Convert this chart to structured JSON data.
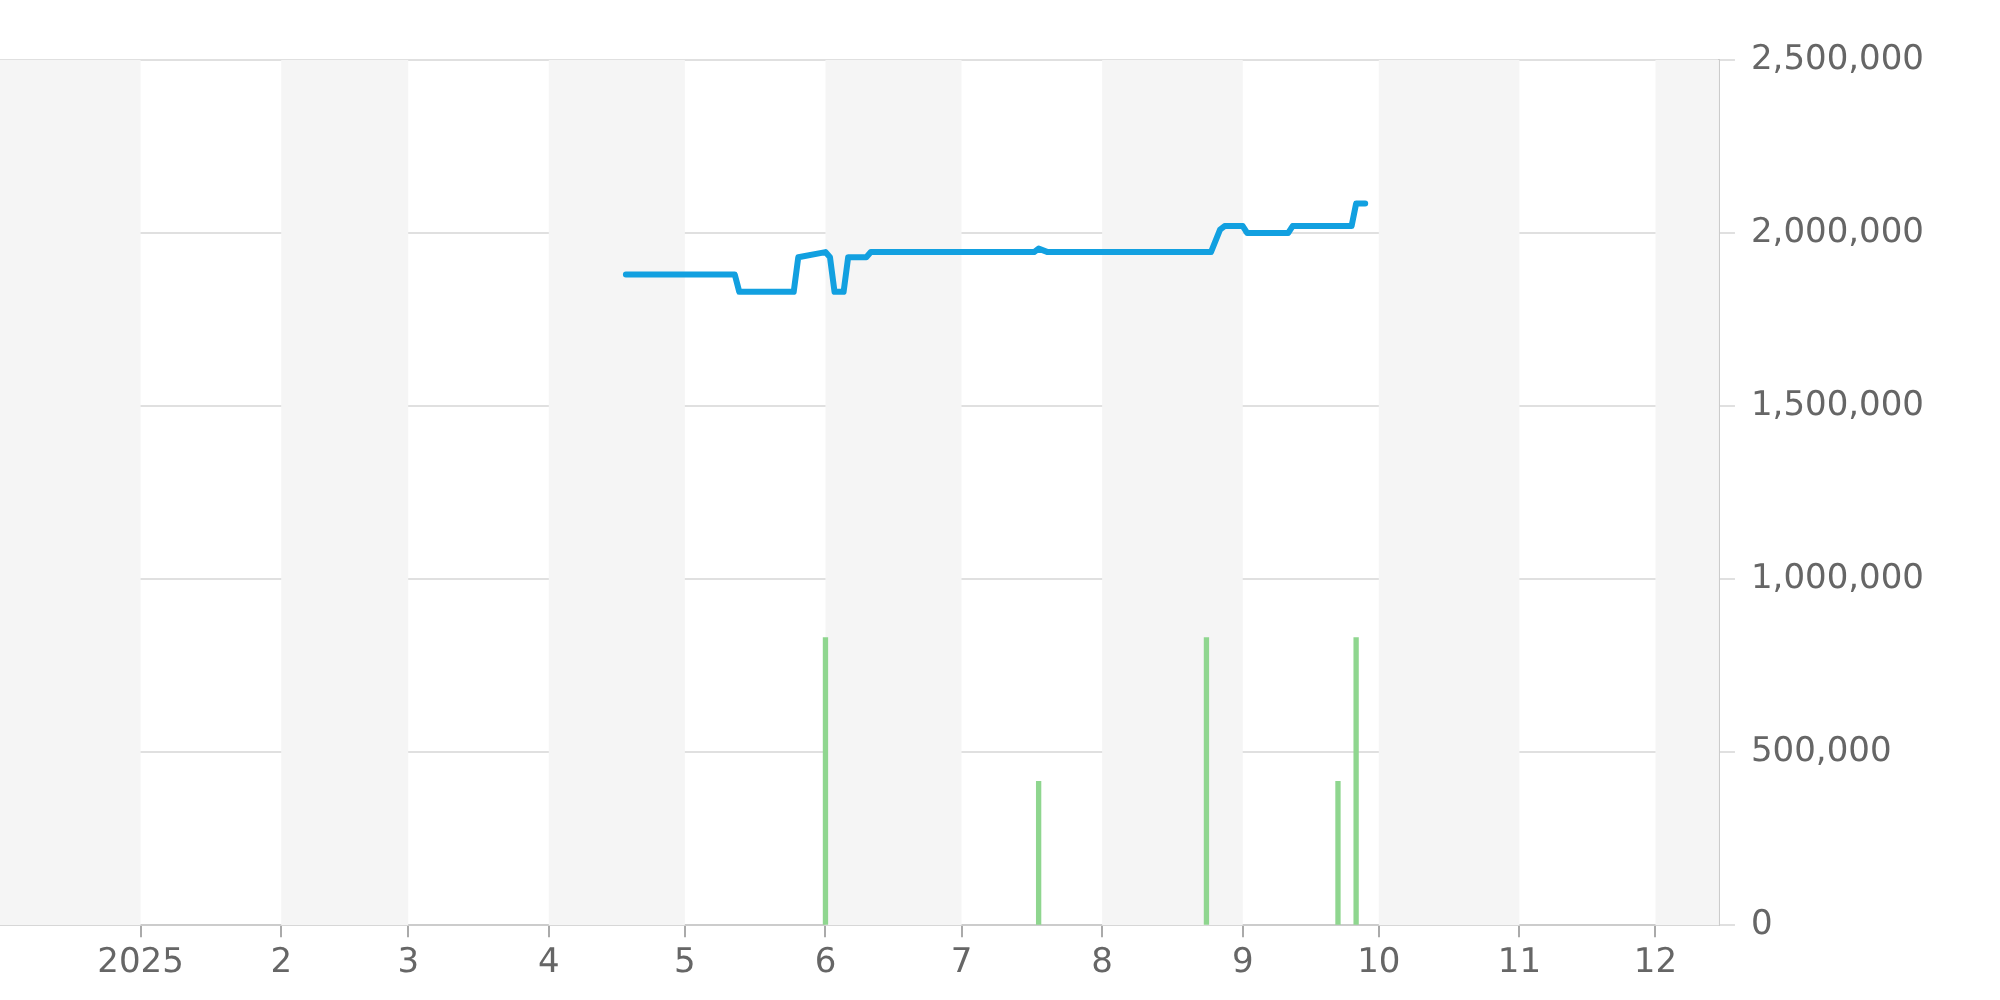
{
  "chart_data": {
    "type": "line",
    "xlim": [
      "2024-12-01",
      "2025-12-15"
    ],
    "xticks": [
      {
        "value": "2025-01-01",
        "label": "2025"
      },
      {
        "value": "2025-02-01",
        "label": "2"
      },
      {
        "value": "2025-03-01",
        "label": "3"
      },
      {
        "value": "2025-04-01",
        "label": "4"
      },
      {
        "value": "2025-05-01",
        "label": "5"
      },
      {
        "value": "2025-06-01",
        "label": "6"
      },
      {
        "value": "2025-07-01",
        "label": "7"
      },
      {
        "value": "2025-08-01",
        "label": "8"
      },
      {
        "value": "2025-09-01",
        "label": "9"
      },
      {
        "value": "2025-10-01",
        "label": "10"
      },
      {
        "value": "2025-11-01",
        "label": "11"
      },
      {
        "value": "2025-12-01",
        "label": "12"
      }
    ],
    "ylim": [
      0,
      2500000
    ],
    "yticks": [
      {
        "value": 0,
        "label": "0"
      },
      {
        "value": 500000,
        "label": "500,000"
      },
      {
        "value": 1000000,
        "label": "1,000,000"
      },
      {
        "value": 1500000,
        "label": "1,500,000"
      },
      {
        "value": 2000000,
        "label": "2,000,000"
      },
      {
        "value": 2500000,
        "label": "2,500,000"
      }
    ],
    "grid": "y",
    "legend": false,
    "marker": "none",
    "line_style": "solid",
    "bands": [
      {
        "axis": "x",
        "from": "2024-12-01",
        "to": "2025-01-01",
        "color": "#f5f5f5"
      },
      {
        "axis": "x",
        "from": "2025-02-01",
        "to": "2025-03-01",
        "color": "#f5f5f5"
      },
      {
        "axis": "x",
        "from": "2025-04-01",
        "to": "2025-05-01",
        "color": "#f5f5f5"
      },
      {
        "axis": "x",
        "from": "2025-06-01",
        "to": "2025-07-01",
        "color": "#f5f5f5"
      },
      {
        "axis": "x",
        "from": "2025-08-01",
        "to": "2025-09-01",
        "color": "#f5f5f5"
      },
      {
        "axis": "x",
        "from": "2025-10-01",
        "to": "2025-11-01",
        "color": "#f5f5f5"
      },
      {
        "axis": "x",
        "from": "2025-12-01",
        "to": "2025-12-15",
        "color": "#f5f5f5"
      }
    ],
    "series": [
      {
        "type": "bar",
        "color": "#8fd68f",
        "x": [
          "2025-06-01",
          "2025-07-18",
          "2025-08-24",
          "2025-09-22",
          "2025-09-26"
        ],
        "values": [
          830000,
          415000,
          830000,
          415000,
          830000
        ]
      },
      {
        "color": "#12a0e0",
        "x": [
          "2025-04-18",
          "2025-05-12",
          "2025-05-13",
          "2025-05-25",
          "2025-05-26",
          "2025-06-01",
          "2025-06-02",
          "2025-06-03",
          "2025-06-05",
          "2025-06-06",
          "2025-06-10",
          "2025-06-11",
          "2025-07-17",
          "2025-07-18",
          "2025-07-20",
          "2025-08-25",
          "2025-08-27",
          "2025-08-28",
          "2025-09-01",
          "2025-09-02",
          "2025-09-11",
          "2025-09-12",
          "2025-09-25",
          "2025-09-26",
          "2025-09-28"
        ],
        "values": [
          1880000,
          1880000,
          1830000,
          1830000,
          1930000,
          1945000,
          1930000,
          1830000,
          1830000,
          1930000,
          1930000,
          1945000,
          1945000,
          1955000,
          1945000,
          1945000,
          2010000,
          2020000,
          2020000,
          2000000,
          2000000,
          2020000,
          2020000,
          2085000,
          2085000
        ]
      }
    ]
  }
}
